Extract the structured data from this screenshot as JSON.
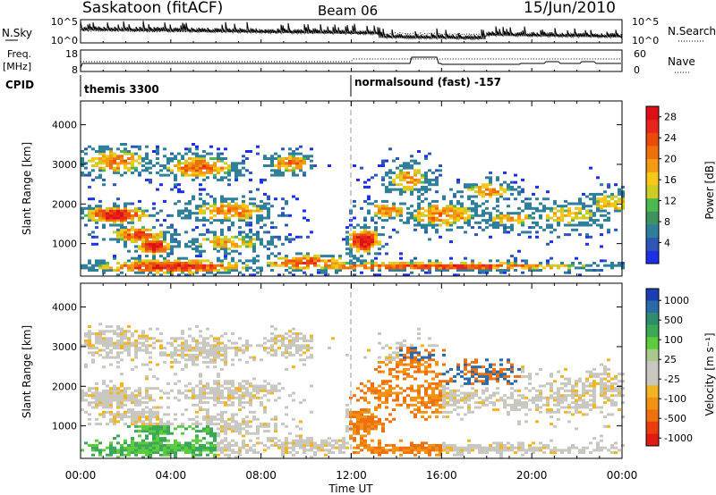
{
  "header": {
    "station": "Saskatoon (fitACF)",
    "beam": "Beam 06",
    "date": "15/Jun/2010"
  },
  "noise_panel": {
    "left_label": "N.Sky",
    "left_tick_top": "10^5",
    "left_tick_bottom": "10^0",
    "right_tick_top": "10^5",
    "right_tick_bottom": "10^0",
    "right_label": "N.Search"
  },
  "freq_panel": {
    "left_label_line1": "Freq.",
    "left_label_line2": "[MHz]",
    "left_tick_top": "18",
    "left_tick_bottom": "8",
    "right_tick_top": "60",
    "right_tick_bottom": "0",
    "right_label": "Nave"
  },
  "cpid_panel": {
    "label": "CPID",
    "segments": [
      {
        "start_hour": 0,
        "text": "themis 3300"
      },
      {
        "start_hour": 12,
        "text": "normalsound (fast) -157"
      }
    ]
  },
  "chart_data": {
    "type": "heatmap",
    "x_axis": {
      "label": "Time UT",
      "range_hours": [
        0,
        24
      ],
      "ticks": [
        "00:00",
        "04:00",
        "08:00",
        "12:00",
        "16:00",
        "20:00",
        "00:00"
      ],
      "tick_hours": [
        0,
        4,
        8,
        12,
        16,
        20,
        24
      ]
    },
    "dashed_marker_hour": 12,
    "panels": [
      {
        "name": "power",
        "ylabel": "Slant Range [km]",
        "ylim": [
          180,
          4600
        ],
        "yticks": [
          "1000",
          "2000",
          "3000",
          "4000"
        ],
        "ytick_values": [
          1000,
          2000,
          3000,
          4000
        ],
        "colorbar_label": "Power [dB]",
        "colorbar_ticks": [
          "4",
          "8",
          "12",
          "16",
          "20",
          "24",
          "28"
        ],
        "colorbar_tick_values": [
          4,
          8,
          12,
          16,
          20,
          24,
          28
        ],
        "colorbar_range": [
          0,
          30
        ],
        "colorbar_colors": [
          "#1c2fe6",
          "#2d56b8",
          "#2f7f9b",
          "#3d9260",
          "#4db84f",
          "#cccc26",
          "#f5c81a",
          "#f29a12",
          "#ee6f0c",
          "#ec4a0a",
          "#e8241c",
          "#de0f16"
        ]
      },
      {
        "name": "velocity",
        "ylabel": "Slant Range [km]",
        "ylim": [
          180,
          4600
        ],
        "yticks": [
          "1000",
          "2000",
          "3000",
          "4000"
        ],
        "ytick_values": [
          1000,
          2000,
          3000,
          4000
        ],
        "colorbar_label": "Velocity [m s⁻¹]",
        "colorbar_ticks": [
          "1000",
          "500",
          "100",
          "25",
          "-25",
          "-100",
          "-500",
          "-1000"
        ],
        "colorbar_colors": [
          "#1a3fb0",
          "#2a6aa8",
          "#2f8c6c",
          "#3aa858",
          "#5ccc3d",
          "#a8c98e",
          "#c8c8c0",
          "#c8c8c0",
          "#f3b424",
          "#f29214",
          "#ee700e",
          "#ea3c10",
          "#e01b14"
        ]
      }
    ]
  },
  "colors": {
    "frame": "#000000",
    "ground_scatter": "#c8c8c0",
    "dashed_marker": "#999999"
  }
}
